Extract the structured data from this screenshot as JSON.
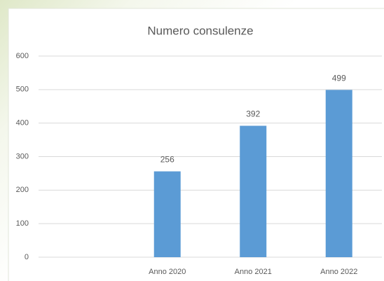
{
  "chart_data": {
    "type": "bar",
    "title": "Numero consulenze",
    "categories": [
      null,
      "Anno 2020",
      "Anno 2021",
      "Anno 2022"
    ],
    "values": [
      null,
      256,
      392,
      499
    ],
    "color": "#5b9bd5",
    "ylim": [
      0,
      600
    ],
    "yticks": [
      0,
      100,
      200,
      300,
      400,
      500,
      600
    ],
    "grid": true
  }
}
